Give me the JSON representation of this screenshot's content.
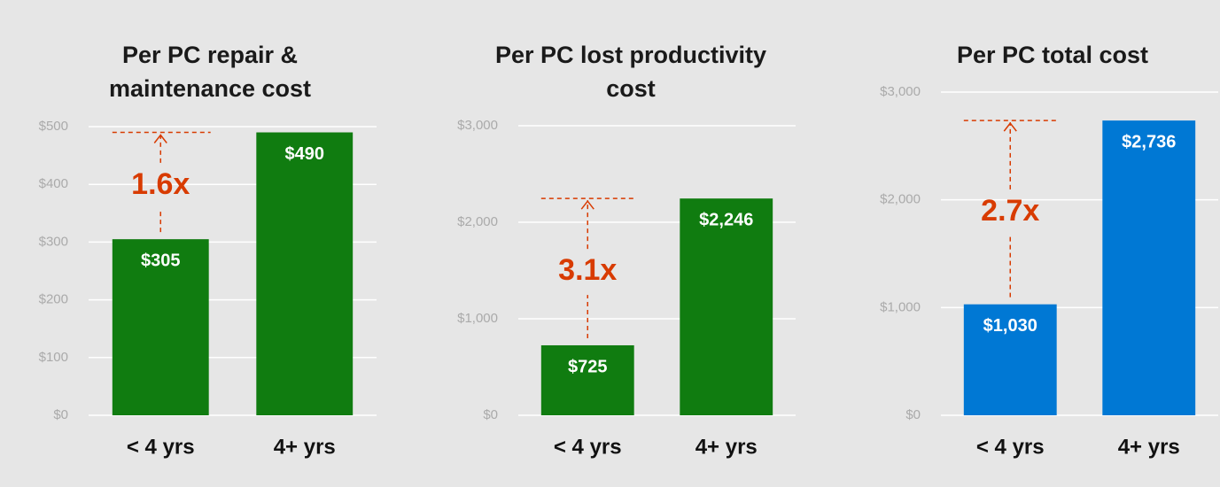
{
  "chart_data": [
    {
      "type": "bar",
      "title": "Per PC repair & maintenance cost",
      "categories": [
        "< 4 yrs",
        "4+ yrs"
      ],
      "values": [
        305,
        490
      ],
      "value_labels": [
        "$305",
        "$490"
      ],
      "color": "#107c10",
      "ylim": [
        0,
        500
      ],
      "yticks": [
        {
          "value": 0,
          "label": "$0"
        },
        {
          "value": 100,
          "label": "$100"
        },
        {
          "value": 200,
          "label": "$200"
        },
        {
          "value": 300,
          "label": "$300"
        },
        {
          "value": 400,
          "label": "$400"
        },
        {
          "value": 500,
          "label": "$500"
        }
      ],
      "grid": true,
      "annotation": "1.6x"
    },
    {
      "type": "bar",
      "title": "Per PC lost productivity cost",
      "categories": [
        "< 4 yrs",
        "4+ yrs"
      ],
      "values": [
        725,
        2246
      ],
      "value_labels": [
        "$725",
        "$2,246"
      ],
      "color": "#107c10",
      "ylim": [
        0,
        3000
      ],
      "yticks": [
        {
          "value": 0,
          "label": "$0"
        },
        {
          "value": 1000,
          "label": "$1,000"
        },
        {
          "value": 2000,
          "label": "$2,000"
        },
        {
          "value": 3000,
          "label": "$3,000"
        }
      ],
      "grid": true,
      "annotation": "3.1x"
    },
    {
      "type": "bar",
      "title": "Per PC total cost",
      "categories": [
        "< 4 yrs",
        "4+ yrs"
      ],
      "values": [
        1030,
        2736
      ],
      "value_labels": [
        "$1,030",
        "$2,736"
      ],
      "color": "#0078d4",
      "ylim": [
        0,
        3000
      ],
      "yticks": [
        {
          "value": 0,
          "label": "$0"
        },
        {
          "value": 1000,
          "label": "$1,000"
        },
        {
          "value": 2000,
          "label": "$2,000"
        },
        {
          "value": 3000,
          "label": "$3,000"
        }
      ],
      "grid": true,
      "annotation": "2.7x"
    }
  ]
}
